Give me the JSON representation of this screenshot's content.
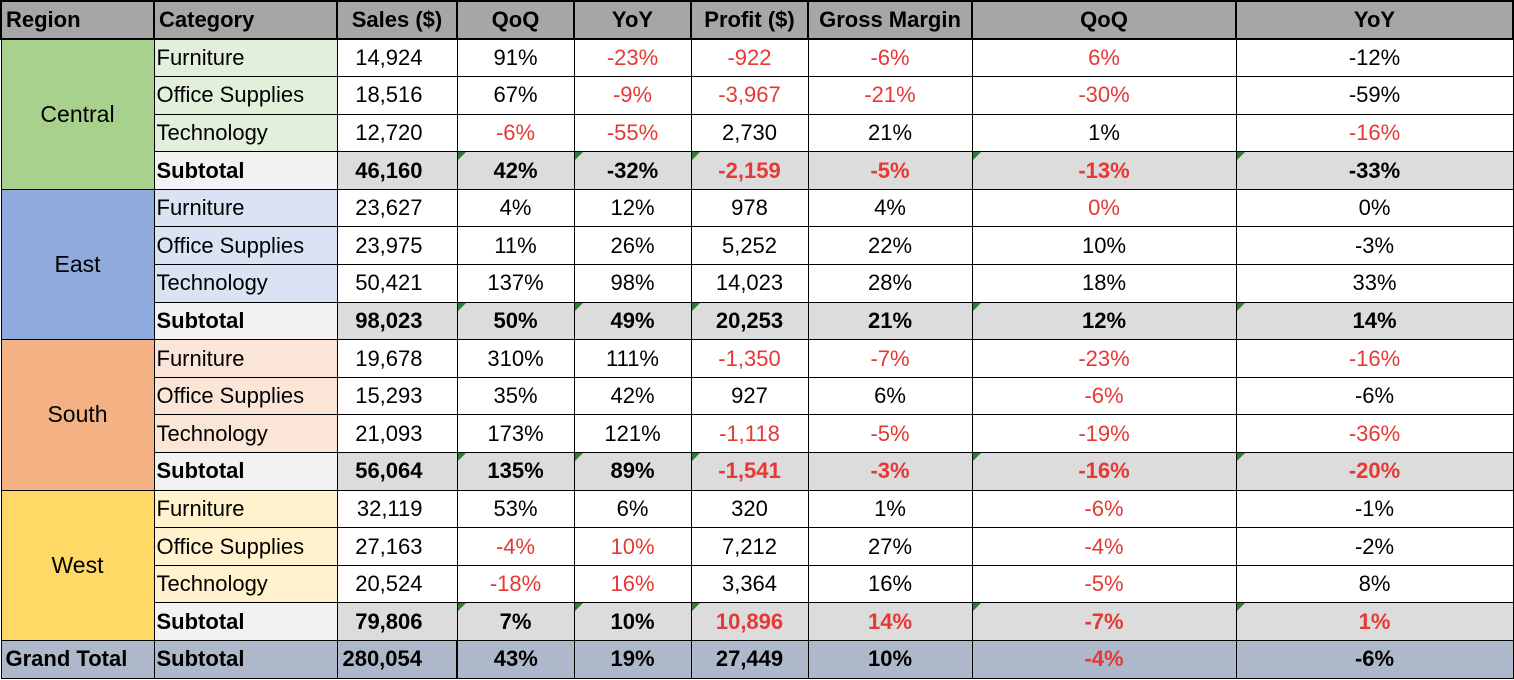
{
  "colors": {
    "header_bg": "#a6a6a6",
    "subtotal_bg": "#dcdcdc",
    "grand_bg": "#adb9ca",
    "negative_text": "#e53935",
    "error_marker": "#2e7d32"
  },
  "headers": [
    "Region",
    "Category",
    "Sales ($)",
    "QoQ",
    "YoY",
    "Profit ($)",
    "Gross Margin",
    "QoQ",
    "YoY"
  ],
  "regions": [
    {
      "name": "Central",
      "bg": "#a9d18e",
      "cat_bg": "#e2efda",
      "rows": [
        {
          "category": "Furniture",
          "sales": "14,924",
          "qoq": "91%",
          "yoy": "-23%",
          "profit": "-922",
          "gm": "-6%",
          "gm_qoq": "6%",
          "gm_yoy": "-12%"
        },
        {
          "category": "Office Supplies",
          "sales": "18,516",
          "qoq": "67%",
          "yoy": "-9%",
          "profit": "-3,967",
          "gm": "-21%",
          "gm_qoq": "-30%",
          "gm_yoy": "-59%"
        },
        {
          "category": "Technology",
          "sales": "12,720",
          "qoq": "-6%",
          "yoy": "-55%",
          "profit": "2,730",
          "gm": "21%",
          "gm_qoq": "1%",
          "gm_yoy": "-16%"
        }
      ],
      "subtotal": {
        "category": "Subtotal",
        "sales": "46,160",
        "qoq": "42%",
        "yoy": "-32%",
        "profit": "-2,159",
        "gm": "-5%",
        "gm_qoq": "-13%",
        "gm_yoy": "-33%"
      }
    },
    {
      "name": "East",
      "bg": "#8faadc",
      "cat_bg": "#dae3f3",
      "rows": [
        {
          "category": "Furniture",
          "sales": "23,627",
          "qoq": "4%",
          "yoy": "12%",
          "profit": "978",
          "gm": "4%",
          "gm_qoq": "0%",
          "gm_yoy": "0%"
        },
        {
          "category": "Office Supplies",
          "sales": "23,975",
          "qoq": "11%",
          "yoy": "26%",
          "profit": "5,252",
          "gm": "22%",
          "gm_qoq": "10%",
          "gm_yoy": "-3%"
        },
        {
          "category": "Technology",
          "sales": "50,421",
          "qoq": "137%",
          "yoy": "98%",
          "profit": "14,023",
          "gm": "28%",
          "gm_qoq": "18%",
          "gm_yoy": "33%"
        }
      ],
      "subtotal": {
        "category": "Subtotal",
        "sales": "98,023",
        "qoq": "50%",
        "yoy": "49%",
        "profit": "20,253",
        "gm": "21%",
        "gm_qoq": "12%",
        "gm_yoy": "14%"
      }
    },
    {
      "name": "South",
      "bg": "#f4b183",
      "cat_bg": "#fbe5d6",
      "rows": [
        {
          "category": "Furniture",
          "sales": "19,678",
          "qoq": "310%",
          "yoy": "111%",
          "profit": "-1,350",
          "gm": "-7%",
          "gm_qoq": "-23%",
          "gm_yoy": "-16%"
        },
        {
          "category": "Office Supplies",
          "sales": "15,293",
          "qoq": "35%",
          "yoy": "42%",
          "profit": "927",
          "gm": "6%",
          "gm_qoq": "-6%",
          "gm_yoy": "-6%"
        },
        {
          "category": "Technology",
          "sales": "21,093",
          "qoq": "173%",
          "yoy": "121%",
          "profit": "-1,118",
          "gm": "-5%",
          "gm_qoq": "-19%",
          "gm_yoy": "-36%"
        }
      ],
      "subtotal": {
        "category": "Subtotal",
        "sales": "56,064",
        "qoq": "135%",
        "yoy": "89%",
        "profit": "-1,541",
        "gm": "-3%",
        "gm_qoq": "-16%",
        "gm_yoy": "-20%"
      }
    },
    {
      "name": "West",
      "bg": "#ffd966",
      "cat_bg": "#fff2cc",
      "rows": [
        {
          "category": "Furniture",
          "sales": "32,119",
          "qoq": "53%",
          "yoy": "6%",
          "profit": "320",
          "gm": "1%",
          "gm_qoq": "-6%",
          "gm_yoy": "-1%"
        },
        {
          "category": "Office Supplies",
          "sales": "27,163",
          "qoq": "-4%",
          "yoy": "10%",
          "profit": "7,212",
          "gm": "27%",
          "gm_qoq": "-4%",
          "gm_yoy": "-2%"
        },
        {
          "category": "Technology",
          "sales": "20,524",
          "qoq": "-18%",
          "yoy": "16%",
          "profit": "3,364",
          "gm": "16%",
          "gm_qoq": "-5%",
          "gm_yoy": "8%"
        }
      ],
      "subtotal": {
        "category": "Subtotal",
        "sales": "79,806",
        "qoq": "7%",
        "yoy": "10%",
        "profit": "10,896",
        "gm": "14%",
        "gm_qoq": "-7%",
        "gm_yoy": "1%"
      }
    }
  ],
  "grand_total": {
    "region": "Grand Total",
    "category": "Subtotal",
    "sales": "280,054",
    "qoq": "43%",
    "yoy": "19%",
    "profit": "27,449",
    "gm": "10%",
    "gm_qoq": "-4%",
    "gm_yoy": "-6%"
  },
  "red_cells": {
    "0.0": [
      "yoy",
      "profit",
      "gm",
      "gm_qoq"
    ],
    "0.1": [
      "yoy",
      "profit",
      "gm",
      "gm_qoq"
    ],
    "0.2": [
      "qoq",
      "yoy",
      "gm_yoy"
    ],
    "0.s": [
      "profit",
      "gm",
      "gm_qoq"
    ],
    "1.0": [
      "gm_qoq"
    ],
    "2.0": [
      "profit",
      "gm",
      "gm_qoq",
      "gm_yoy"
    ],
    "2.1": [
      "gm_qoq"
    ],
    "2.2": [
      "profit",
      "gm",
      "gm_qoq",
      "gm_yoy"
    ],
    "2.s": [
      "profit",
      "gm",
      "gm_qoq",
      "gm_yoy"
    ],
    "3.0": [
      "gm_qoq"
    ],
    "3.1": [
      "qoq",
      "yoy",
      "gm_qoq"
    ],
    "3.2": [
      "qoq",
      "yoy",
      "gm_qoq"
    ],
    "3.s": [
      "profit",
      "gm",
      "gm_qoq",
      "gm_yoy"
    ],
    "g": [
      "gm_qoq"
    ]
  }
}
